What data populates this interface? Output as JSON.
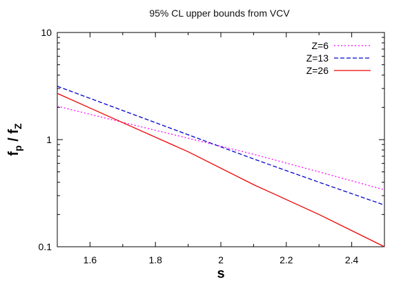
{
  "chart_data": {
    "type": "line",
    "title": "95% CL upper bounds from VCV",
    "xlabel": "s",
    "ylabel": {
      "main": "f",
      "sub1": "p",
      "sep": " / ",
      "main2": "f",
      "sub2": "Z"
    },
    "xlim": [
      1.5,
      2.5
    ],
    "ylim": [
      0.1,
      10
    ],
    "yscale": "log",
    "xticks": [
      1.6,
      1.8,
      2.0,
      2.2,
      2.4
    ],
    "xtick_labels": [
      "1.6",
      "1.8",
      "2",
      "2.2",
      "2.4"
    ],
    "yticks": [
      0.1,
      1,
      10
    ],
    "ytick_labels": [
      "0.1",
      "1",
      "10"
    ],
    "legend_position": "top-right",
    "series": [
      {
        "name": "Z=6",
        "color": "#ff00ff",
        "dash": "dotted",
        "x": [
          1.5,
          1.7,
          1.9,
          2.1,
          2.3,
          2.5
        ],
        "y": [
          2.05,
          1.45,
          1.03,
          0.73,
          0.5,
          0.34
        ]
      },
      {
        "name": "Z=13",
        "color": "#0000cc",
        "dash": "dashed",
        "x": [
          1.5,
          1.7,
          1.9,
          2.1,
          2.3,
          2.5
        ],
        "y": [
          3.15,
          1.87,
          1.11,
          0.66,
          0.4,
          0.245
        ]
      },
      {
        "name": "Z=26",
        "color": "#ee0000",
        "dash": "solid",
        "x": [
          1.5,
          1.7,
          1.9,
          2.1,
          2.3,
          2.5
        ],
        "y": [
          2.7,
          1.44,
          0.77,
          0.38,
          0.2,
          0.1
        ]
      }
    ]
  }
}
